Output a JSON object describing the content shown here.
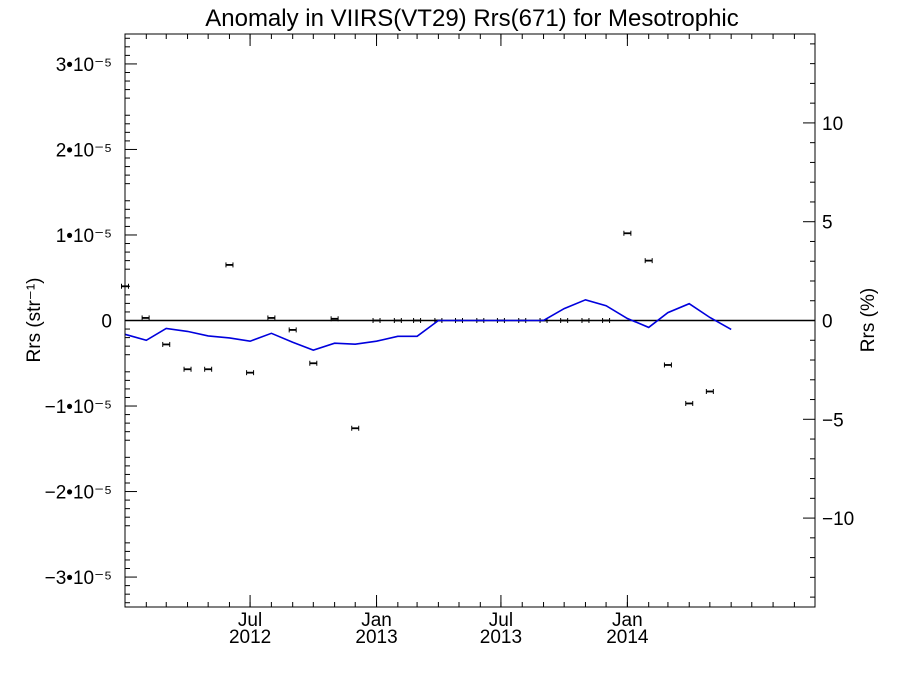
{
  "chart_data": {
    "type": "scatter",
    "title": "Anomaly in VIIRS(VT29) Rrs(671) for Mesotrophic",
    "ylabel_left": "Rrs (str⁻¹)",
    "ylabel_right": "Rrs (%)",
    "xlim": [
      "2012-01-01",
      "2014-10-01"
    ],
    "ylim_left": [
      -3.35e-05,
      3.35e-05
    ],
    "ylim_right": [
      -14.5,
      14.5
    ],
    "left_ticks": [
      {
        "value": 3e-05,
        "label": "3•10⁻⁵"
      },
      {
        "value": 2e-05,
        "label": "2•10⁻⁵"
      },
      {
        "value": 1e-05,
        "label": "1•10⁻⁵"
      },
      {
        "value": 0,
        "label": "0"
      },
      {
        "value": -1e-05,
        "label": "−1•10⁻⁵"
      },
      {
        "value": -2e-05,
        "label": "−2•10⁻⁵"
      },
      {
        "value": -3e-05,
        "label": "−3•10⁻⁵"
      }
    ],
    "right_ticks": [
      {
        "value": 10,
        "label": "10"
      },
      {
        "value": 5,
        "label": "5"
      },
      {
        "value": 0,
        "label": "0"
      },
      {
        "value": -5,
        "label": "−5"
      },
      {
        "value": -10,
        "label": "−10"
      }
    ],
    "x_ticks": [
      {
        "date": "2012-07-01",
        "label_month": "Jul",
        "label_year": "2012"
      },
      {
        "date": "2013-01-01",
        "label_month": "Jan",
        "label_year": "2013"
      },
      {
        "date": "2013-07-01",
        "label_month": "Jul",
        "label_year": "2013"
      },
      {
        "date": "2014-01-01",
        "label_month": "Jan",
        "label_year": "2014"
      }
    ],
    "series": [
      {
        "axis": "left",
        "style": "points_with_errorbars",
        "color": "#000000",
        "points": [
          {
            "x": "2012-01-01",
            "y": 4e-06
          },
          {
            "x": "2012-01-31",
            "y": 3e-07
          },
          {
            "x": "2012-03-01",
            "y": -2.8e-06
          },
          {
            "x": "2012-04-01",
            "y": -5.7e-06
          },
          {
            "x": "2012-05-01",
            "y": -5.7e-06
          },
          {
            "x": "2012-06-01",
            "y": 6.5e-06
          },
          {
            "x": "2012-07-01",
            "y": -6.1e-06
          },
          {
            "x": "2012-08-01",
            "y": 3e-07
          },
          {
            "x": "2012-09-01",
            "y": -1.1e-06
          },
          {
            "x": "2012-10-01",
            "y": -5e-06
          },
          {
            "x": "2012-11-01",
            "y": 2e-07
          },
          {
            "x": "2012-12-01",
            "y": -1.26e-05
          },
          {
            "x": "2013-01-01",
            "y": 0
          },
          {
            "x": "2013-02-01",
            "y": 0
          },
          {
            "x": "2013-03-01",
            "y": 0
          },
          {
            "x": "2013-04-01",
            "y": 0
          },
          {
            "x": "2013-05-01",
            "y": 0
          },
          {
            "x": "2013-06-01",
            "y": 0
          },
          {
            "x": "2013-07-01",
            "y": 0
          },
          {
            "x": "2013-08-01",
            "y": 0
          },
          {
            "x": "2013-09-01",
            "y": 0
          },
          {
            "x": "2013-10-01",
            "y": 0
          },
          {
            "x": "2013-11-01",
            "y": 0
          },
          {
            "x": "2013-12-01",
            "y": 0
          },
          {
            "x": "2014-01-01",
            "y": 1.02e-05
          },
          {
            "x": "2014-02-01",
            "y": 7e-06
          },
          {
            "x": "2014-03-01",
            "y": -5.2e-06
          },
          {
            "x": "2014-04-01",
            "y": -9.7e-06
          },
          {
            "x": "2014-05-01",
            "y": -8.3e-06
          }
        ]
      },
      {
        "axis": "right",
        "style": "line",
        "color": "#0000dd",
        "points": [
          {
            "x": "2012-01-01",
            "y": -0.7
          },
          {
            "x": "2012-02-01",
            "y": -1.0
          },
          {
            "x": "2012-03-01",
            "y": -0.4
          },
          {
            "x": "2012-04-01",
            "y": -0.55
          },
          {
            "x": "2012-05-01",
            "y": -0.78
          },
          {
            "x": "2012-06-01",
            "y": -0.88
          },
          {
            "x": "2012-07-01",
            "y": -1.05
          },
          {
            "x": "2012-08-01",
            "y": -0.65
          },
          {
            "x": "2012-09-01",
            "y": -1.1
          },
          {
            "x": "2012-10-01",
            "y": -1.5
          },
          {
            "x": "2012-11-01",
            "y": -1.15
          },
          {
            "x": "2012-12-01",
            "y": -1.2
          },
          {
            "x": "2013-01-01",
            "y": -1.05
          },
          {
            "x": "2013-02-01",
            "y": -0.8
          },
          {
            "x": "2013-03-01",
            "y": -0.8
          },
          {
            "x": "2013-04-01",
            "y": 0
          },
          {
            "x": "2013-05-01",
            "y": 0
          },
          {
            "x": "2013-06-01",
            "y": 0
          },
          {
            "x": "2013-07-01",
            "y": 0
          },
          {
            "x": "2013-08-01",
            "y": 0
          },
          {
            "x": "2013-09-01",
            "y": 0
          },
          {
            "x": "2013-10-01",
            "y": 0.6
          },
          {
            "x": "2013-11-01",
            "y": 1.05
          },
          {
            "x": "2013-12-01",
            "y": 0.75
          },
          {
            "x": "2014-01-01",
            "y": 0.1
          },
          {
            "x": "2014-02-01",
            "y": -0.35
          },
          {
            "x": "2014-03-01",
            "y": 0.4
          },
          {
            "x": "2014-04-01",
            "y": 0.85
          },
          {
            "x": "2014-05-01",
            "y": 0.15
          },
          {
            "x": "2014-06-01",
            "y": -0.45
          }
        ]
      }
    ],
    "grid": false,
    "legend": "none"
  }
}
